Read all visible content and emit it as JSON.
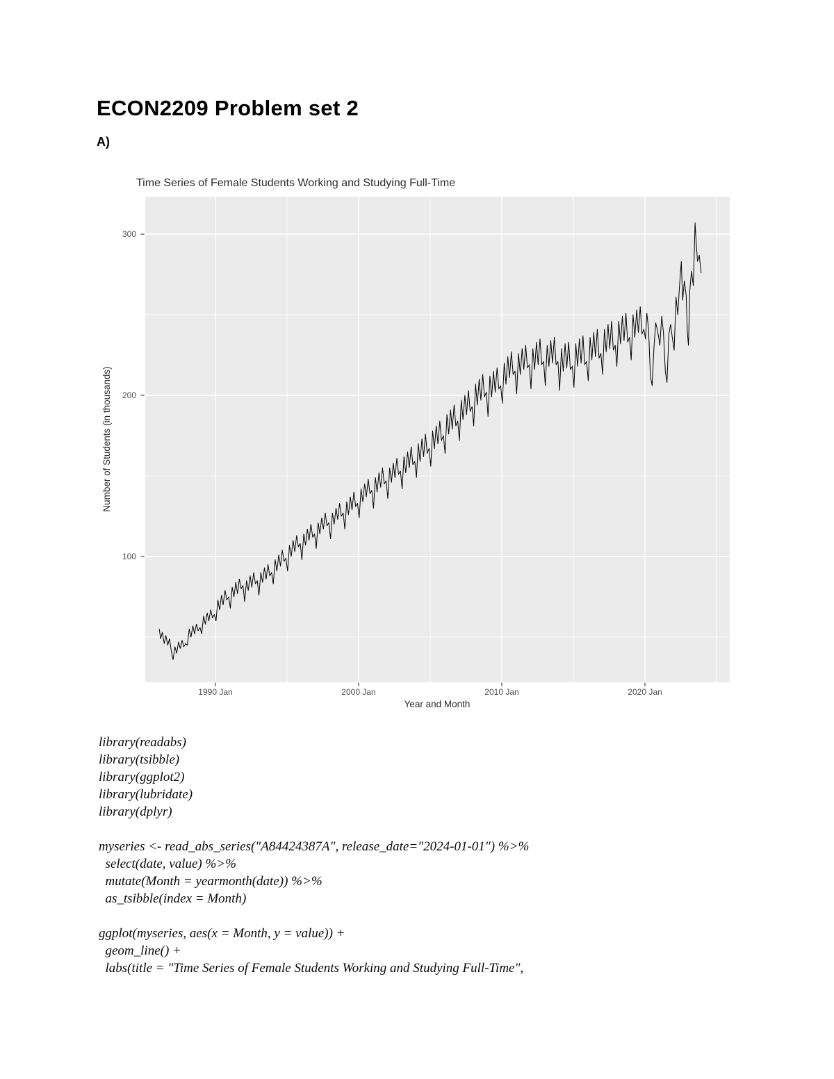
{
  "page": {
    "title": "ECON2209 Problem set 2",
    "section_label": "A)"
  },
  "chart_data": {
    "type": "line",
    "title": "Time Series of Female Students Working and Studying Full-Time",
    "xlabel": "Year and Month",
    "ylabel": "Number of Students (in thousands)",
    "series_name": "Female students working and studying full-time",
    "legend": "none",
    "grid": true,
    "panel_bg": "#EBEBEB",
    "grid_color": "#FFFFFF",
    "line_color": "#000000",
    "tick_text_color": "#4D4D4D",
    "x_major_ticks": [
      1990,
      2000,
      2010,
      2020
    ],
    "x_tick_labels": [
      "1990 Jan",
      "2000 Jan",
      "2010 Jan",
      "2020 Jan"
    ],
    "x_minor_ticks": [
      1985,
      1995,
      2005,
      2015,
      2025
    ],
    "y_major_ticks": [
      100,
      200,
      300
    ],
    "y_tick_labels": [
      "100",
      "200",
      "300"
    ],
    "y_minor_ticks": [
      50,
      150,
      250
    ],
    "xlim": [
      1985.0,
      2025.9
    ],
    "ylim": [
      22,
      323
    ],
    "points": [
      [
        1986.08,
        55
      ],
      [
        1986.17,
        49
      ],
      [
        1986.29,
        53
      ],
      [
        1986.42,
        46
      ],
      [
        1986.54,
        51
      ],
      [
        1986.67,
        45
      ],
      [
        1986.79,
        49
      ],
      [
        1986.92,
        41
      ],
      [
        1987.04,
        36
      ],
      [
        1987.17,
        44
      ],
      [
        1987.29,
        40
      ],
      [
        1987.42,
        47
      ],
      [
        1987.54,
        43
      ],
      [
        1987.67,
        48
      ],
      [
        1987.79,
        44
      ],
      [
        1987.92,
        46
      ],
      [
        1988.04,
        45
      ],
      [
        1988.17,
        55
      ],
      [
        1988.29,
        50
      ],
      [
        1988.42,
        57
      ],
      [
        1988.54,
        52
      ],
      [
        1988.67,
        58
      ],
      [
        1988.79,
        54
      ],
      [
        1988.92,
        56
      ],
      [
        1989.04,
        52
      ],
      [
        1989.17,
        63
      ],
      [
        1989.29,
        58
      ],
      [
        1989.42,
        65
      ],
      [
        1989.54,
        60
      ],
      [
        1989.67,
        67
      ],
      [
        1989.79,
        62
      ],
      [
        1989.92,
        64
      ],
      [
        1990.04,
        60
      ],
      [
        1990.17,
        73
      ],
      [
        1990.29,
        67
      ],
      [
        1990.42,
        76
      ],
      [
        1990.54,
        70
      ],
      [
        1990.67,
        79
      ],
      [
        1990.79,
        73
      ],
      [
        1990.92,
        75
      ],
      [
        1991.04,
        68
      ],
      [
        1991.17,
        81
      ],
      [
        1991.29,
        75
      ],
      [
        1991.42,
        84
      ],
      [
        1991.54,
        77
      ],
      [
        1991.67,
        86
      ],
      [
        1991.79,
        80
      ],
      [
        1991.92,
        82
      ],
      [
        1992.04,
        72
      ],
      [
        1992.17,
        85
      ],
      [
        1992.29,
        79
      ],
      [
        1992.42,
        88
      ],
      [
        1992.54,
        81
      ],
      [
        1992.67,
        90
      ],
      [
        1992.79,
        83
      ],
      [
        1992.92,
        85
      ],
      [
        1993.04,
        76
      ],
      [
        1993.17,
        90
      ],
      [
        1993.29,
        84
      ],
      [
        1993.42,
        93
      ],
      [
        1993.54,
        86
      ],
      [
        1993.67,
        95
      ],
      [
        1993.79,
        88
      ],
      [
        1993.92,
        90
      ],
      [
        1994.04,
        83
      ],
      [
        1994.17,
        98
      ],
      [
        1994.29,
        91
      ],
      [
        1994.42,
        101
      ],
      [
        1994.54,
        94
      ],
      [
        1994.67,
        104
      ],
      [
        1994.79,
        97
      ],
      [
        1994.92,
        99
      ],
      [
        1995.04,
        91
      ],
      [
        1995.17,
        107
      ],
      [
        1995.29,
        100
      ],
      [
        1995.42,
        110
      ],
      [
        1995.54,
        103
      ],
      [
        1995.67,
        113
      ],
      [
        1995.79,
        106
      ],
      [
        1995.92,
        108
      ],
      [
        1996.04,
        98
      ],
      [
        1996.17,
        114
      ],
      [
        1996.29,
        107
      ],
      [
        1996.42,
        117
      ],
      [
        1996.54,
        110
      ],
      [
        1996.67,
        120
      ],
      [
        1996.79,
        112
      ],
      [
        1996.92,
        114
      ],
      [
        1997.04,
        105
      ],
      [
        1997.17,
        121
      ],
      [
        1997.29,
        114
      ],
      [
        1997.42,
        124
      ],
      [
        1997.54,
        117
      ],
      [
        1997.67,
        127
      ],
      [
        1997.79,
        119
      ],
      [
        1997.92,
        121
      ],
      [
        1998.04,
        111
      ],
      [
        1998.17,
        127
      ],
      [
        1998.29,
        120
      ],
      [
        1998.42,
        130
      ],
      [
        1998.54,
        123
      ],
      [
        1998.67,
        133
      ],
      [
        1998.79,
        125
      ],
      [
        1998.92,
        127
      ],
      [
        1999.04,
        117
      ],
      [
        1999.17,
        134
      ],
      [
        1999.29,
        126
      ],
      [
        1999.42,
        137
      ],
      [
        1999.54,
        129
      ],
      [
        1999.67,
        140
      ],
      [
        1999.79,
        131
      ],
      [
        1999.92,
        133
      ],
      [
        2000.04,
        124
      ],
      [
        2000.17,
        142
      ],
      [
        2000.29,
        134
      ],
      [
        2000.42,
        145
      ],
      [
        2000.54,
        137
      ],
      [
        2000.67,
        148
      ],
      [
        2000.79,
        139
      ],
      [
        2000.92,
        141
      ],
      [
        2001.04,
        130
      ],
      [
        2001.17,
        149
      ],
      [
        2001.29,
        140
      ],
      [
        2001.42,
        152
      ],
      [
        2001.54,
        143
      ],
      [
        2001.67,
        155
      ],
      [
        2001.79,
        145
      ],
      [
        2001.92,
        147
      ],
      [
        2002.04,
        136
      ],
      [
        2002.17,
        155
      ],
      [
        2002.29,
        146
      ],
      [
        2002.42,
        158
      ],
      [
        2002.54,
        149
      ],
      [
        2002.67,
        161
      ],
      [
        2002.79,
        151
      ],
      [
        2002.92,
        153
      ],
      [
        2003.04,
        142
      ],
      [
        2003.17,
        162
      ],
      [
        2003.29,
        152
      ],
      [
        2003.42,
        165
      ],
      [
        2003.54,
        155
      ],
      [
        2003.67,
        168
      ],
      [
        2003.79,
        157
      ],
      [
        2003.92,
        159
      ],
      [
        2004.04,
        149
      ],
      [
        2004.17,
        170
      ],
      [
        2004.29,
        159
      ],
      [
        2004.42,
        173
      ],
      [
        2004.54,
        162
      ],
      [
        2004.67,
        176
      ],
      [
        2004.79,
        164
      ],
      [
        2004.92,
        167
      ],
      [
        2005.04,
        156
      ],
      [
        2005.17,
        178
      ],
      [
        2005.29,
        167
      ],
      [
        2005.42,
        181
      ],
      [
        2005.54,
        170
      ],
      [
        2005.67,
        184
      ],
      [
        2005.79,
        172
      ],
      [
        2005.92,
        175
      ],
      [
        2006.04,
        164
      ],
      [
        2006.17,
        188
      ],
      [
        2006.29,
        176
      ],
      [
        2006.42,
        191
      ],
      [
        2006.54,
        179
      ],
      [
        2006.67,
        194
      ],
      [
        2006.79,
        181
      ],
      [
        2006.92,
        184
      ],
      [
        2007.04,
        172
      ],
      [
        2007.17,
        197
      ],
      [
        2007.29,
        185
      ],
      [
        2007.42,
        200
      ],
      [
        2007.54,
        188
      ],
      [
        2007.67,
        203
      ],
      [
        2007.79,
        190
      ],
      [
        2007.92,
        193
      ],
      [
        2008.04,
        181
      ],
      [
        2008.17,
        207
      ],
      [
        2008.29,
        194
      ],
      [
        2008.42,
        210
      ],
      [
        2008.54,
        197
      ],
      [
        2008.67,
        213
      ],
      [
        2008.79,
        199
      ],
      [
        2008.92,
        202
      ],
      [
        2009.04,
        187
      ],
      [
        2009.17,
        212
      ],
      [
        2009.29,
        199
      ],
      [
        2009.42,
        215
      ],
      [
        2009.54,
        202
      ],
      [
        2009.67,
        217
      ],
      [
        2009.79,
        204
      ],
      [
        2009.92,
        206
      ],
      [
        2010.04,
        195
      ],
      [
        2010.17,
        220
      ],
      [
        2010.29,
        207
      ],
      [
        2010.42,
        224
      ],
      [
        2010.54,
        211
      ],
      [
        2010.67,
        227
      ],
      [
        2010.79,
        213
      ],
      [
        2010.92,
        215
      ],
      [
        2011.04,
        201
      ],
      [
        2011.17,
        226
      ],
      [
        2011.29,
        213
      ],
      [
        2011.42,
        229
      ],
      [
        2011.54,
        216
      ],
      [
        2011.67,
        231
      ],
      [
        2011.79,
        217
      ],
      [
        2011.92,
        219
      ],
      [
        2012.04,
        204
      ],
      [
        2012.17,
        229
      ],
      [
        2012.29,
        216
      ],
      [
        2012.42,
        233
      ],
      [
        2012.54,
        219
      ],
      [
        2012.67,
        235
      ],
      [
        2012.79,
        219
      ],
      [
        2012.92,
        221
      ],
      [
        2013.04,
        206
      ],
      [
        2013.17,
        231
      ],
      [
        2013.29,
        218
      ],
      [
        2013.42,
        234
      ],
      [
        2013.54,
        220
      ],
      [
        2013.67,
        236
      ],
      [
        2013.79,
        219
      ],
      [
        2013.92,
        221
      ],
      [
        2014.04,
        203
      ],
      [
        2014.17,
        229
      ],
      [
        2014.29,
        215
      ],
      [
        2014.42,
        232
      ],
      [
        2014.54,
        217
      ],
      [
        2014.67,
        233
      ],
      [
        2014.79,
        216
      ],
      [
        2014.92,
        218
      ],
      [
        2015.04,
        205
      ],
      [
        2015.17,
        232
      ],
      [
        2015.29,
        218
      ],
      [
        2015.42,
        235
      ],
      [
        2015.54,
        220
      ],
      [
        2015.67,
        237
      ],
      [
        2015.79,
        219
      ],
      [
        2015.92,
        221
      ],
      [
        2016.04,
        209
      ],
      [
        2016.17,
        236
      ],
      [
        2016.29,
        222
      ],
      [
        2016.42,
        239
      ],
      [
        2016.54,
        224
      ],
      [
        2016.67,
        241
      ],
      [
        2016.79,
        223
      ],
      [
        2016.92,
        226
      ],
      [
        2017.04,
        213
      ],
      [
        2017.17,
        241
      ],
      [
        2017.29,
        227
      ],
      [
        2017.42,
        244
      ],
      [
        2017.54,
        229
      ],
      [
        2017.67,
        246
      ],
      [
        2017.79,
        228
      ],
      [
        2017.92,
        231
      ],
      [
        2018.04,
        218
      ],
      [
        2018.17,
        246
      ],
      [
        2018.29,
        232
      ],
      [
        2018.42,
        249
      ],
      [
        2018.54,
        234
      ],
      [
        2018.67,
        251
      ],
      [
        2018.79,
        233
      ],
      [
        2018.92,
        236
      ],
      [
        2019.04,
        222
      ],
      [
        2019.17,
        250
      ],
      [
        2019.29,
        236
      ],
      [
        2019.42,
        253
      ],
      [
        2019.54,
        239
      ],
      [
        2019.67,
        255
      ],
      [
        2019.79,
        238
      ],
      [
        2019.92,
        241
      ],
      [
        2020.04,
        235
      ],
      [
        2020.13,
        251
      ],
      [
        2020.25,
        241
      ],
      [
        2020.38,
        212
      ],
      [
        2020.5,
        206
      ],
      [
        2020.63,
        230
      ],
      [
        2020.75,
        245
      ],
      [
        2020.88,
        240
      ],
      [
        2020.96,
        236
      ],
      [
        2021.04,
        231
      ],
      [
        2021.17,
        249
      ],
      [
        2021.29,
        239
      ],
      [
        2021.42,
        215
      ],
      [
        2021.54,
        208
      ],
      [
        2021.67,
        238
      ],
      [
        2021.79,
        244
      ],
      [
        2021.92,
        235
      ],
      [
        2022.04,
        228
      ],
      [
        2022.17,
        261
      ],
      [
        2022.29,
        250
      ],
      [
        2022.42,
        269
      ],
      [
        2022.54,
        283
      ],
      [
        2022.63,
        259
      ],
      [
        2022.75,
        271
      ],
      [
        2022.88,
        262
      ],
      [
        2022.96,
        239
      ],
      [
        2023.04,
        231
      ],
      [
        2023.13,
        265
      ],
      [
        2023.25,
        277
      ],
      [
        2023.38,
        268
      ],
      [
        2023.5,
        307
      ],
      [
        2023.58,
        295
      ],
      [
        2023.67,
        283
      ],
      [
        2023.79,
        287
      ],
      [
        2023.92,
        276
      ]
    ]
  },
  "code": {
    "lines": [
      "library(readabs)",
      "library(tsibble)",
      "library(ggplot2)",
      "library(lubridate)",
      "library(dplyr)",
      "",
      "myseries <- read_abs_series(\"A84424387A\", release_date=\"2024-01-01\") %>%",
      "  select(date, value) %>%",
      "  mutate(Month = yearmonth(date)) %>%",
      "  as_tsibble(index = Month)",
      "",
      "ggplot(myseries, aes(x = Month, y = value)) +",
      "  geom_line() +",
      "  labs(title = \"Time Series of Female Students Working and Studying Full-Time\","
    ]
  }
}
